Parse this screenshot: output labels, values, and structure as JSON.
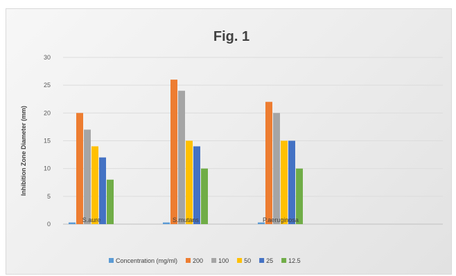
{
  "chart_data": {
    "type": "bar",
    "title": "Fig. 1",
    "xlabel": "",
    "ylabel": "Inhibition Zone Diameter (mm)",
    "ylim": [
      0,
      30
    ],
    "yticks": [
      0,
      5,
      10,
      15,
      20,
      25,
      30
    ],
    "grid": true,
    "legend_position": "bottom",
    "categories": [
      "S.aure",
      "S.mutans",
      "P.aeruginosa"
    ],
    "series": [
      {
        "name": "Concentration (mg/ml)",
        "color": "#5b9bd5",
        "values": [
          0.3,
          0.3,
          0.3
        ]
      },
      {
        "name": "200",
        "color": "#ed7d31",
        "values": [
          20,
          26,
          22
        ]
      },
      {
        "name": "100",
        "color": "#a5a5a5",
        "values": [
          17,
          24,
          20
        ]
      },
      {
        "name": "50",
        "color": "#ffc000",
        "values": [
          14,
          15,
          15
        ]
      },
      {
        "name": "25",
        "color": "#4472c4",
        "values": [
          12,
          14,
          15
        ]
      },
      {
        "name": "12.5",
        "color": "#70ad47",
        "values": [
          8,
          10,
          10
        ]
      }
    ]
  }
}
